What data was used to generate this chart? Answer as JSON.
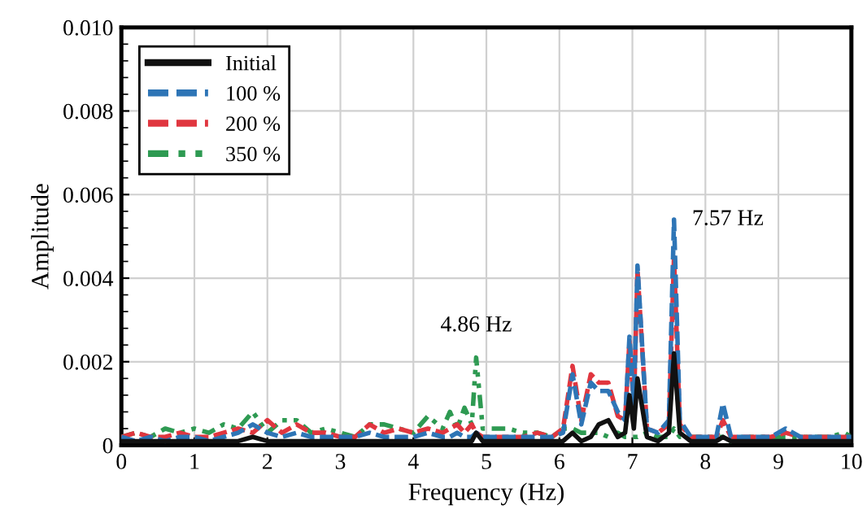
{
  "chart_data": {
    "type": "line",
    "xlabel": "Frequency (Hz)",
    "ylabel": "Amplitude",
    "x": [
      0,
      0.2,
      0.4,
      0.6,
      0.8,
      1.0,
      1.2,
      1.4,
      1.6,
      1.8,
      2.0,
      2.2,
      2.4,
      2.6,
      2.8,
      3.0,
      3.2,
      3.4,
      3.6,
      3.8,
      4.0,
      4.2,
      4.4,
      4.5,
      4.6,
      4.7,
      4.8,
      4.86,
      4.95,
      5.1,
      5.3,
      5.5,
      5.7,
      5.9,
      6.05,
      6.18,
      6.3,
      6.43,
      6.54,
      6.67,
      6.8,
      6.9,
      6.96,
      7.02,
      7.07,
      7.2,
      7.35,
      7.5,
      7.57,
      7.65,
      7.8,
      8.0,
      8.15,
      8.24,
      8.35,
      8.5,
      8.7,
      8.9,
      9.1,
      9.3,
      9.5,
      9.7,
      9.9,
      10.0
    ],
    "series": [
      {
        "name": "Initial",
        "color": "#111111",
        "line_style": "solid",
        "values": [
          0.0001,
          0.0001,
          0.0001,
          0.0001,
          0.0001,
          0.0001,
          0.0001,
          0.0001,
          0.0001,
          0.0002,
          0.0001,
          0.0001,
          0.0001,
          0.0001,
          0.0001,
          0.0001,
          0.0001,
          0.0001,
          0.0001,
          0.0001,
          0.0001,
          0.0001,
          0.0001,
          0.0001,
          0.0001,
          0.0001,
          0.0001,
          0.0003,
          0.0001,
          0.0001,
          0.0001,
          0.0001,
          0.0001,
          0.0001,
          0.0001,
          0.0003,
          0.0001,
          0.0002,
          0.0005,
          0.0006,
          0.0002,
          0.0003,
          0.0012,
          0.0004,
          0.0016,
          0.0002,
          0.0001,
          0.0003,
          0.0022,
          0.0003,
          0.0001,
          0.0001,
          0.0001,
          0.0002,
          0.0001,
          0.0001,
          0.0001,
          0.0001,
          0.0001,
          0.0001,
          0.0001,
          0.0001,
          0.0001,
          0.0001
        ]
      },
      {
        "name": "100 %",
        "color": "#2e75b6",
        "line_style": "dashed",
        "values": [
          0.0002,
          0.0001,
          0.0002,
          0.0001,
          0.0002,
          0.0002,
          0.0001,
          0.0002,
          0.0003,
          0.0005,
          0.0003,
          0.0002,
          0.0003,
          0.0002,
          0.0002,
          0.0002,
          0.0002,
          0.0003,
          0.0002,
          0.0002,
          0.0002,
          0.0003,
          0.0002,
          0.0002,
          0.0003,
          0.0002,
          0.0002,
          0.0003,
          0.0002,
          0.0002,
          0.0002,
          0.0002,
          0.0002,
          0.0002,
          0.0003,
          0.0017,
          0.0005,
          0.0015,
          0.0013,
          0.0013,
          0.0008,
          0.0006,
          0.0026,
          0.001,
          0.0043,
          0.0004,
          0.0003,
          0.0006,
          0.0054,
          0.0006,
          0.0002,
          0.0002,
          0.0002,
          0.001,
          0.0002,
          0.0002,
          0.0002,
          0.0002,
          0.0004,
          0.0002,
          0.0002,
          0.0002,
          0.0002,
          0.0002
        ]
      },
      {
        "name": "200 %",
        "color": "#e0363f",
        "line_style": "dashed",
        "values": [
          0.0002,
          0.0003,
          0.0002,
          0.0002,
          0.0003,
          0.0002,
          0.0002,
          0.0003,
          0.0004,
          0.0003,
          0.0006,
          0.0003,
          0.0005,
          0.0003,
          0.0003,
          0.0002,
          0.0002,
          0.0005,
          0.0003,
          0.0004,
          0.0003,
          0.0004,
          0.0003,
          0.0004,
          0.0005,
          0.0003,
          0.0005,
          0.0003,
          0.0002,
          0.0002,
          0.0002,
          0.0002,
          0.0003,
          0.0002,
          0.0004,
          0.0019,
          0.0006,
          0.0017,
          0.0015,
          0.0015,
          0.0007,
          0.0006,
          0.0025,
          0.0009,
          0.0042,
          0.0004,
          0.0003,
          0.0005,
          0.0045,
          0.0005,
          0.0002,
          0.0002,
          0.0002,
          0.0006,
          0.0002,
          0.0002,
          0.0002,
          0.0002,
          0.0003,
          0.0002,
          0.0002,
          0.0002,
          0.0002,
          0.0002
        ]
      },
      {
        "name": "350 %",
        "color": "#2e9a52",
        "line_style": "dotted",
        "values": [
          0.0002,
          0.0003,
          0.0002,
          0.0004,
          0.0003,
          0.0004,
          0.0003,
          0.0005,
          0.0004,
          0.0008,
          0.0003,
          0.0006,
          0.0006,
          0.0003,
          0.0004,
          0.0003,
          0.0002,
          0.0005,
          0.0005,
          0.0004,
          0.0003,
          0.0007,
          0.0004,
          0.0008,
          0.0004,
          0.0009,
          0.0005,
          0.0021,
          0.0004,
          0.0004,
          0.0004,
          0.0003,
          0.0003,
          0.0002,
          0.0004,
          0.0004,
          0.0003,
          0.0003,
          0.0003,
          0.0002,
          0.0003,
          0.0002,
          0.0002,
          0.0002,
          0.0002,
          0.0003,
          0.0002,
          0.0002,
          0.0004,
          0.0002,
          0.0002,
          0.0002,
          0.0002,
          0.0002,
          0.0001,
          0.0002,
          0.0002,
          0.0002,
          0.0002,
          0.0002,
          0.0002,
          0.0002,
          0.0003,
          0.0002
        ]
      }
    ],
    "xlim": [
      0,
      10
    ],
    "xticks": [
      0,
      1,
      2,
      3,
      4,
      5,
      6,
      7,
      8,
      9,
      10
    ],
    "ylim": [
      0,
      0.01
    ],
    "yticks": [
      0,
      0.002,
      0.004,
      0.006,
      0.008,
      {
        "value": 0.01,
        "label": "0.010"
      }
    ],
    "grid": true,
    "legend": "top left",
    "marker": "none",
    "annotations": [
      {
        "text": "4.86 Hz",
        "x": 4.86,
        "y": 0.0021
      },
      {
        "text": "7.57 Hz",
        "x": 7.57,
        "y": 0.0054
      }
    ]
  }
}
